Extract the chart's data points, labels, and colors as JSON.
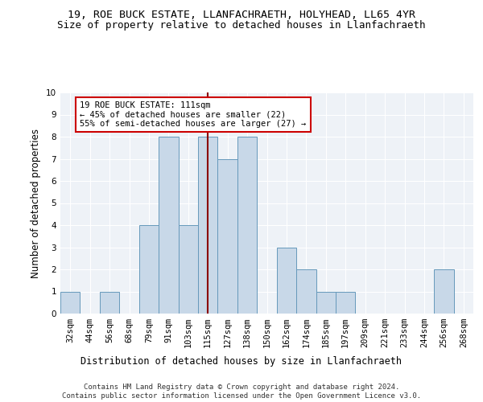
{
  "title_line1": "19, ROE BUCK ESTATE, LLANFACHRAETH, HOLYHEAD, LL65 4YR",
  "title_line2": "Size of property relative to detached houses in Llanfachraeth",
  "xlabel": "Distribution of detached houses by size in Llanfachraeth",
  "ylabel": "Number of detached properties",
  "footnote": "Contains HM Land Registry data © Crown copyright and database right 2024.\nContains public sector information licensed under the Open Government Licence v3.0.",
  "bin_labels": [
    "32sqm",
    "44sqm",
    "56sqm",
    "68sqm",
    "79sqm",
    "91sqm",
    "103sqm",
    "115sqm",
    "127sqm",
    "138sqm",
    "150sqm",
    "162sqm",
    "174sqm",
    "185sqm",
    "197sqm",
    "209sqm",
    "221sqm",
    "233sqm",
    "244sqm",
    "256sqm",
    "268sqm"
  ],
  "bar_values": [
    1,
    0,
    1,
    0,
    4,
    8,
    4,
    8,
    7,
    8,
    0,
    3,
    2,
    1,
    1,
    0,
    0,
    0,
    0,
    2,
    0
  ],
  "bar_color": "#c8d8e8",
  "bar_edgecolor": "#6699bb",
  "annotation_text": "19 ROE BUCK ESTATE: 111sqm\n← 45% of detached houses are smaller (22)\n55% of semi-detached houses are larger (27) →",
  "vline_x": 7.0,
  "vline_color": "#8b0000",
  "annotation_box_edgecolor": "#cc0000",
  "ylim": [
    0,
    10
  ],
  "yticks": [
    0,
    1,
    2,
    3,
    4,
    5,
    6,
    7,
    8,
    9,
    10
  ],
  "background_color": "#eef2f7",
  "grid_color": "#ffffff",
  "title_fontsize": 9.5,
  "subtitle_fontsize": 9,
  "label_fontsize": 8.5,
  "tick_fontsize": 7.5,
  "annotation_fontsize": 7.5,
  "footnote_fontsize": 6.5
}
